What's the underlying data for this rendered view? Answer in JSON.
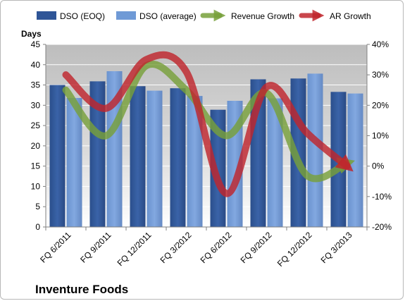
{
  "chart_data": {
    "type": "bar",
    "title": "Inventure Foods",
    "ylabel": "Days",
    "categories": [
      "FQ 6/2011",
      "FQ 9/2011",
      "FQ 12/2011",
      "FQ 3/2012",
      "FQ 6/2012",
      "FQ 9/2012",
      "FQ 12/2012",
      "FQ 3/2013"
    ],
    "ylim": [
      0,
      45
    ],
    "yticks": [
      0,
      5,
      10,
      15,
      20,
      25,
      30,
      35,
      40,
      45
    ],
    "y2lim": [
      -20,
      40
    ],
    "y2ticks": [
      "-20%",
      "-10%",
      "0%",
      "10%",
      "20%",
      "30%",
      "40%"
    ],
    "y2values": [
      -20,
      -10,
      0,
      10,
      20,
      30,
      40
    ],
    "legend_position": "top",
    "series": [
      {
        "name": "DSO (EOQ)",
        "type": "bar",
        "axis": "left",
        "color": "#2f5597",
        "values": [
          35.0,
          35.9,
          34.7,
          34.2,
          28.9,
          36.4,
          36.6,
          33.3
        ]
      },
      {
        "name": "DSO (average)",
        "type": "bar",
        "axis": "left",
        "color": "#6f9ad6",
        "values": [
          31.8,
          38.4,
          33.6,
          32.3,
          31.1,
          31.7,
          37.8,
          32.9
        ]
      },
      {
        "name": "Revenue Growth",
        "type": "line",
        "axis": "right",
        "color": "#77a03a",
        "values": [
          25,
          10,
          33,
          25,
          10,
          24,
          -3,
          1
        ]
      },
      {
        "name": "AR Growth",
        "type": "line",
        "axis": "right",
        "color": "#c0262d",
        "values": [
          30,
          19,
          35,
          31,
          -9,
          26,
          11,
          0
        ]
      }
    ]
  }
}
